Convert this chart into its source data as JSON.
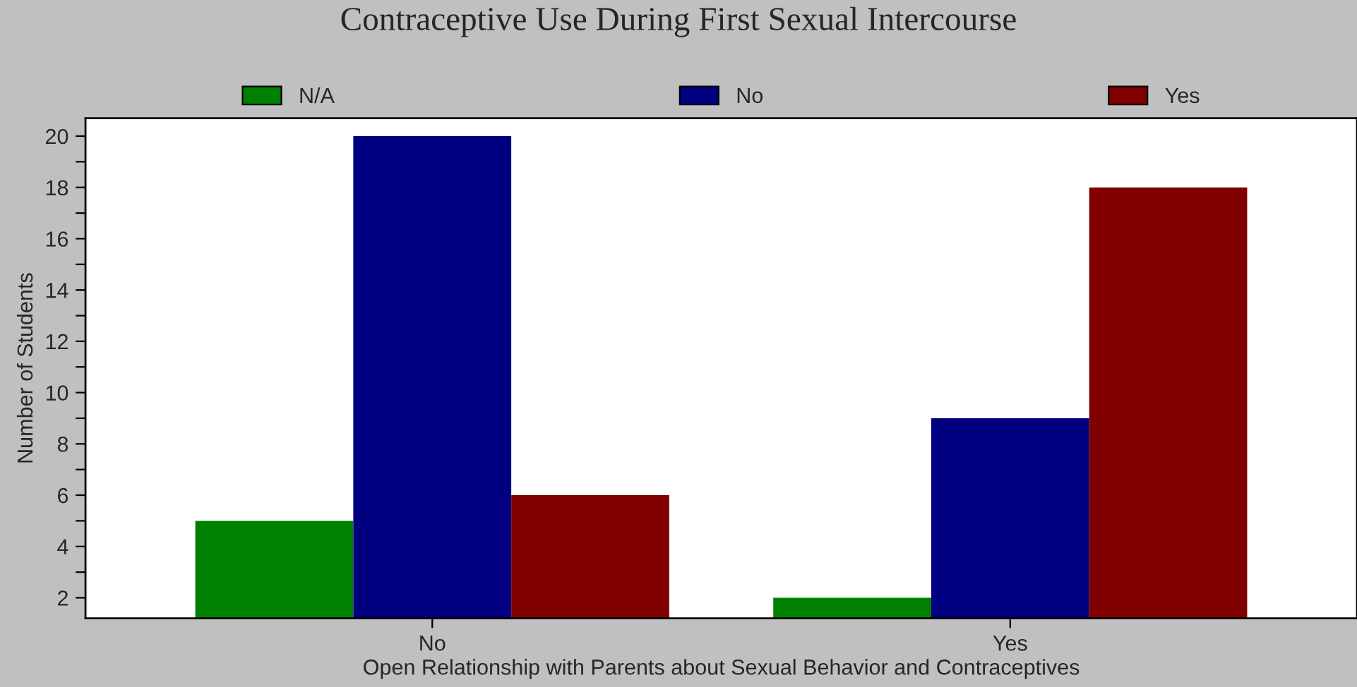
{
  "chart_data": {
    "type": "bar",
    "title": "Contraceptive Use During First Sexual Intercourse",
    "xlabel": "Open Relationship with Parents about Sexual Behavior and Contraceptives",
    "ylabel": "Number of Students",
    "categories": [
      "No",
      "Yes"
    ],
    "series": [
      {
        "name": "N/A",
        "color": "#008000",
        "values": [
          5,
          2
        ]
      },
      {
        "name": "No",
        "color": "#000080",
        "values": [
          20,
          9
        ]
      },
      {
        "name": "Yes",
        "color": "#800000",
        "values": [
          6,
          18
        ]
      }
    ],
    "ylim": [
      1.2,
      20.7
    ],
    "yticks": [
      2,
      {
        "value": 3,
        "label": null
      },
      4,
      {
        "value": 5,
        "label": null
      },
      6,
      {
        "value": 7,
        "label": null
      },
      8,
      {
        "value": 9,
        "label": null
      },
      10,
      {
        "value": 11,
        "label": null
      },
      12,
      {
        "value": 13,
        "label": null
      },
      14,
      {
        "value": 15,
        "label": null
      },
      16,
      {
        "value": 17,
        "label": null
      },
      18,
      {
        "value": 19,
        "label": null
      },
      20
    ],
    "grid": false,
    "legend": "top"
  }
}
